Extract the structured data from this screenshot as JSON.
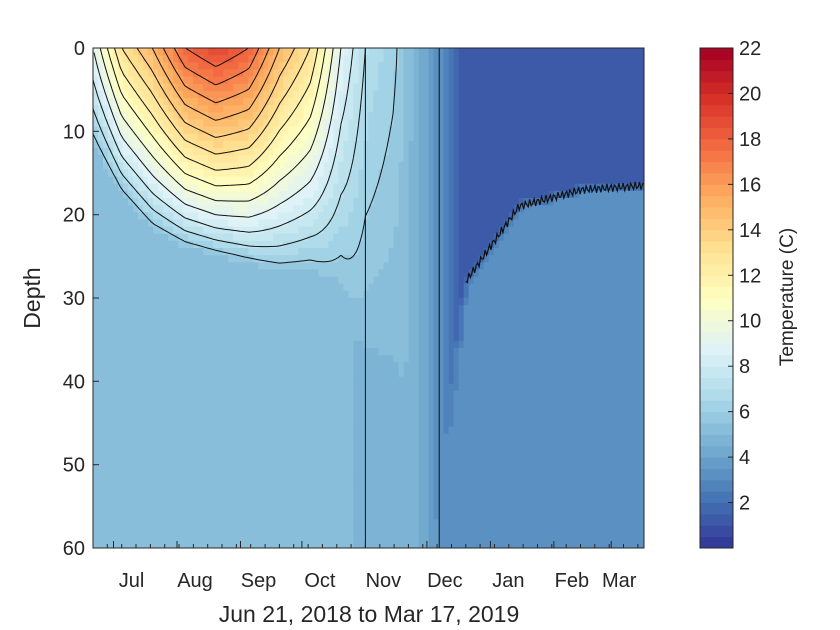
{
  "chart_data": {
    "type": "heatmap",
    "subtype": "filled-contour",
    "title": "",
    "xlabel": "Jun 21, 2018 to Mar 17, 2019",
    "ylabel": "Depth",
    "x_range": [
      "2018-06-21",
      "2019-03-17"
    ],
    "x_ticks": [
      {
        "label": "Jul",
        "date": "2018-07-01"
      },
      {
        "label": "Aug",
        "date": "2018-08-01"
      },
      {
        "label": "Sep",
        "date": "2018-09-01"
      },
      {
        "label": "Oct",
        "date": "2018-10-01"
      },
      {
        "label": "Nov",
        "date": "2018-11-01"
      },
      {
        "label": "Dec",
        "date": "2018-12-01"
      },
      {
        "label": "Jan",
        "date": "2019-01-01"
      },
      {
        "label": "Feb",
        "date": "2019-02-01"
      },
      {
        "label": "Mar",
        "date": "2019-03-01"
      }
    ],
    "ylim": [
      0,
      60
    ],
    "y_reversed": true,
    "y_ticks": [
      "0",
      "10",
      "20",
      "30",
      "40",
      "50",
      "60"
    ],
    "colorbar": {
      "label": "Temperature (C)",
      "range": [
        0,
        22
      ],
      "ticks": [
        "2",
        "4",
        "6",
        "8",
        "10",
        "12",
        "14",
        "16",
        "18",
        "20",
        "22"
      ],
      "colormap": [
        "#313695",
        "#4575b4",
        "#74add1",
        "#abd9e9",
        "#e0f3f8",
        "#ffffbf",
        "#fee090",
        "#fdae61",
        "#f46d43",
        "#d73027",
        "#a50026"
      ]
    },
    "profiles": [
      {
        "date": "2018-06-21",
        "surface_temp": 9,
        "thermocline_depth": 12,
        "bottom_temp": 5.2
      },
      {
        "date": "2018-07-05",
        "surface_temp": 13,
        "thermocline_depth": 18,
        "bottom_temp": 5.2
      },
      {
        "date": "2018-07-20",
        "surface_temp": 15,
        "thermocline_depth": 22,
        "bottom_temp": 5.2
      },
      {
        "date": "2018-08-05",
        "surface_temp": 18,
        "thermocline_depth": 24,
        "bottom_temp": 5.2
      },
      {
        "date": "2018-08-20",
        "surface_temp": 19,
        "thermocline_depth": 25,
        "bottom_temp": 5.2
      },
      {
        "date": "2018-09-05",
        "surface_temp": 18,
        "thermocline_depth": 26,
        "bottom_temp": 5.2
      },
      {
        "date": "2018-09-20",
        "surface_temp": 15,
        "thermocline_depth": 27,
        "bottom_temp": 5.2
      },
      {
        "date": "2018-10-05",
        "surface_temp": 13,
        "thermocline_depth": 27,
        "bottom_temp": 5.2
      },
      {
        "date": "2018-10-20",
        "surface_temp": 9,
        "thermocline_depth": 29,
        "bottom_temp": 5.2
      },
      {
        "date": "2018-11-01",
        "surface_temp": 7,
        "thermocline_depth": 38,
        "bottom_temp": 4.8
      },
      {
        "date": "2018-11-15",
        "surface_temp": 6.2,
        "thermocline_depth": 40,
        "bottom_temp": 4.8
      },
      {
        "date": "2018-11-25",
        "surface_temp": 4.8,
        "thermocline_depth": 60,
        "bottom_temp": 4.8
      },
      {
        "date": "2018-12-05",
        "surface_temp": 3.5,
        "thermocline_depth": 60,
        "bottom_temp": 3.5
      },
      {
        "date": "2018-12-20",
        "surface_temp": 1.0,
        "thermocline_depth": 28,
        "bottom_temp": 3.2
      },
      {
        "date": "2019-01-15",
        "surface_temp": 1.0,
        "thermocline_depth": 19,
        "bottom_temp": 3.2
      },
      {
        "date": "2019-02-15",
        "surface_temp": 1.0,
        "thermocline_depth": 17,
        "bottom_temp": 3.2
      },
      {
        "date": "2019-03-17",
        "surface_temp": 1.0,
        "thermocline_depth": 16.5,
        "bottom_temp": 3.2
      }
    ]
  }
}
